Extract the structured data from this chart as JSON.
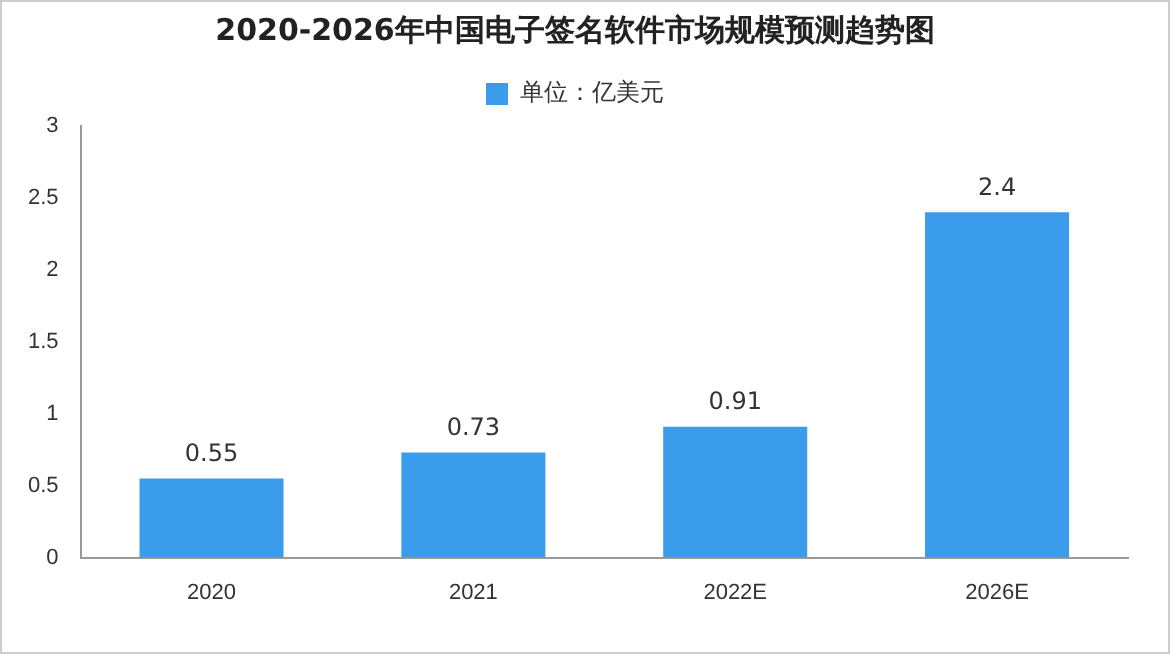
{
  "chart_data": {
    "type": "bar",
    "title": "2020-2026年中国电子签名软件市场规模预测趋势图",
    "categories": [
      "2020",
      "2021",
      "2022E",
      "2026E"
    ],
    "series": [
      {
        "name": "单位：亿美元",
        "color": "#3b9cec",
        "values": [
          0.55,
          0.73,
          0.91,
          2.4
        ]
      }
    ],
    "ylim": [
      0,
      3
    ],
    "yticks": [
      0,
      0.5,
      1,
      1.5,
      2,
      2.5,
      3
    ],
    "grid": false,
    "legend": "top",
    "data_labels": true
  }
}
